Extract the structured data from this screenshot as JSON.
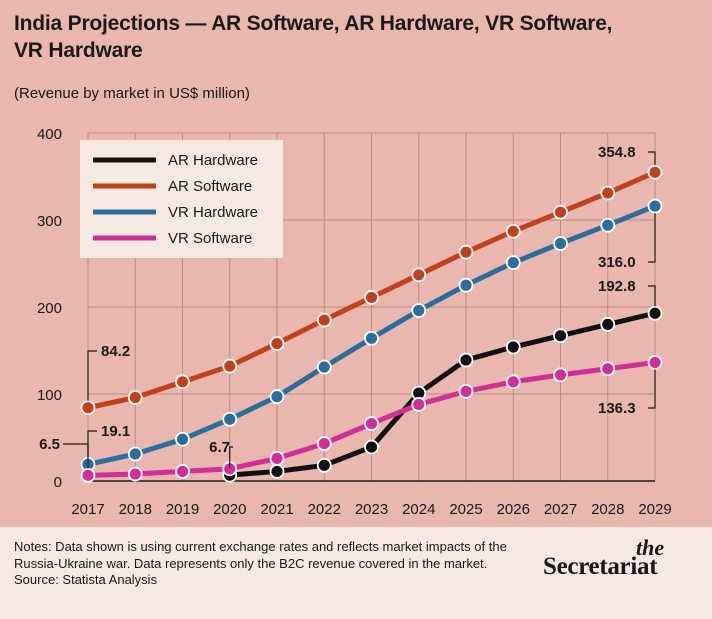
{
  "title": "India Projections — AR Software, AR Hardware, VR Software, VR Hardware",
  "subtitle": "(Revenue by market in US$ million)",
  "notes": "Notes: Data shown is using current exchange rates and reflects market impacts of the Russia-Ukraine war. Data represents only the B2C revenue covered in the market.",
  "source": "Source: Statista Analysis",
  "brand": {
    "small": "the",
    "big": "Secretariat"
  },
  "chart_data": {
    "type": "line",
    "x": [
      2017,
      2018,
      2019,
      2020,
      2021,
      2022,
      2023,
      2024,
      2025,
      2026,
      2027,
      2028,
      2029
    ],
    "ylim": [
      0,
      400
    ],
    "yticks": [
      0,
      100,
      200,
      300,
      400
    ],
    "grid": true,
    "legend": "top-left",
    "series": [
      {
        "name": "AR Hardware",
        "color": "#111111",
        "values": [
          null,
          null,
          null,
          6.7,
          11,
          18,
          39,
          101,
          139,
          154,
          167,
          180,
          192.8
        ]
      },
      {
        "name": "AR Software",
        "color": "#c1411d",
        "values": [
          84.2,
          96,
          114,
          132,
          158,
          185,
          211,
          237,
          263,
          287,
          309,
          331,
          354.8
        ]
      },
      {
        "name": "VR Hardware",
        "color": "#2a6e9b",
        "values": [
          19.1,
          31,
          48,
          71,
          97,
          131,
          164,
          196,
          225,
          251,
          273,
          294,
          316.0
        ]
      },
      {
        "name": "VR Software",
        "color": "#cf2f96",
        "values": [
          6.5,
          8,
          11,
          14,
          26,
          43,
          66,
          88,
          103,
          114,
          122,
          129,
          136.3
        ]
      }
    ],
    "annotations": [
      {
        "series": 1,
        "point": 0,
        "label": "84.2"
      },
      {
        "series": 2,
        "point": 0,
        "label": "19.1"
      },
      {
        "series": 3,
        "point": 0,
        "label": "6.5"
      },
      {
        "series": 0,
        "point": 3,
        "label": "6.7"
      },
      {
        "series": 1,
        "point": 12,
        "label": "354.8"
      },
      {
        "series": 2,
        "point": 12,
        "label": "316.0"
      },
      {
        "series": 0,
        "point": 12,
        "label": "192.8"
      },
      {
        "series": 3,
        "point": 12,
        "label": "136.3"
      }
    ]
  }
}
